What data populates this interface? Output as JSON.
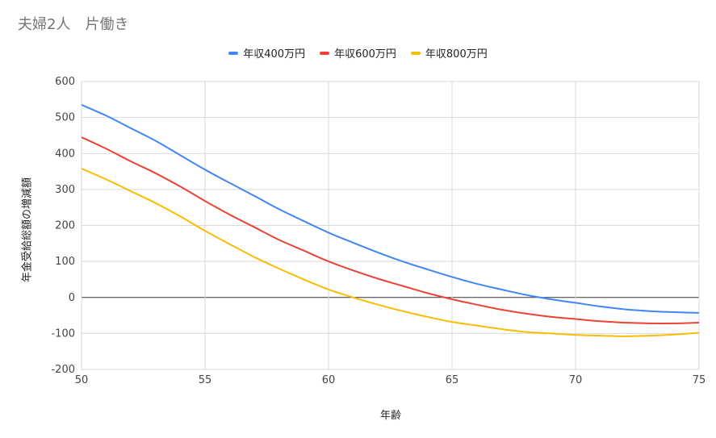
{
  "chart_data": {
    "type": "line",
    "title": "夫婦2人　片働き",
    "xlabel": "年齢",
    "ylabel": "年金受給総額の増減額",
    "xlim": [
      50,
      75
    ],
    "ylim": [
      -200,
      600
    ],
    "x_ticks": [
      "50",
      "55",
      "60",
      "65",
      "70",
      "75"
    ],
    "y_ticks": [
      "600",
      "500",
      "400",
      "300",
      "200",
      "100",
      "0",
      "-100",
      "-200"
    ],
    "grid": true,
    "legend_position": "top",
    "x": [
      50,
      51,
      52,
      53,
      54,
      55,
      56,
      57,
      58,
      59,
      60,
      61,
      62,
      63,
      64,
      65,
      66,
      67,
      68,
      69,
      70,
      71,
      72,
      73,
      74,
      75
    ],
    "series": [
      {
        "name": "年収400万円",
        "color": "#4285f4",
        "values": [
          535,
          505,
          470,
          435,
          395,
          355,
          318,
          282,
          245,
          212,
          180,
          152,
          125,
          100,
          78,
          57,
          38,
          22,
          7,
          -5,
          -15,
          -25,
          -33,
          -38,
          -41,
          -43
        ]
      },
      {
        "name": "年収600万円",
        "color": "#ea4335",
        "values": [
          445,
          413,
          378,
          345,
          308,
          268,
          230,
          195,
          160,
          130,
          100,
          75,
          52,
          32,
          12,
          -5,
          -20,
          -34,
          -45,
          -54,
          -60,
          -66,
          -70,
          -72,
          -72,
          -70
        ]
      },
      {
        "name": "年収800万円",
        "color": "#fbbc04",
        "values": [
          358,
          328,
          295,
          262,
          225,
          185,
          148,
          112,
          80,
          50,
          22,
          0,
          -20,
          -38,
          -54,
          -68,
          -78,
          -88,
          -96,
          -100,
          -104,
          -106,
          -108,
          -106,
          -103,
          -98
        ]
      }
    ]
  }
}
